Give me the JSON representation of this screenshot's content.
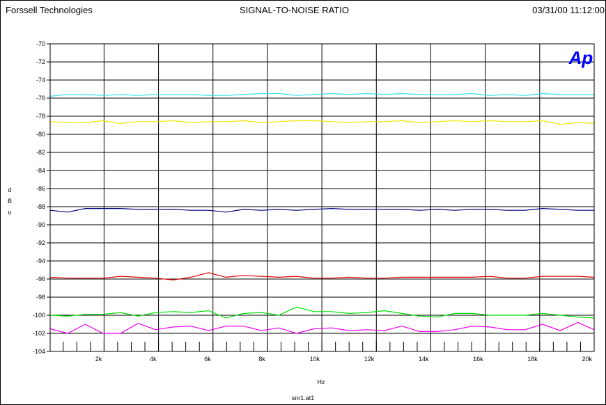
{
  "header": {
    "company": "Forssell Technologies",
    "title": "SIGNAL-TO-NOISE RATIO",
    "timestamp": "03/31/00 11:12:00"
  },
  "footer": {
    "filename": "snr1.at1"
  },
  "logo": {
    "text": "Ap",
    "color": "#0000ff"
  },
  "chart_data": {
    "type": "line",
    "title": "SIGNAL-TO-NOISE RATIO",
    "xlabel": "Hz",
    "ylabel": "dBu",
    "xlim": [
      20,
      20000
    ],
    "ylim": [
      -104,
      -70
    ],
    "x_ticks": [
      2000,
      4000,
      6000,
      8000,
      10000,
      12000,
      14000,
      16000,
      18000,
      20000
    ],
    "x_tick_labels": [
      "2k",
      "4k",
      "6k",
      "8k",
      "10k",
      "12k",
      "14k",
      "16k",
      "18k",
      "20k"
    ],
    "y_ticks": [
      -70,
      -72,
      -74,
      -76,
      -78,
      -80,
      -82,
      -84,
      -86,
      -88,
      -90,
      -92,
      -94,
      -96,
      -98,
      -100,
      -102,
      -104
    ],
    "grid": true,
    "x": [
      20,
      666,
      1312,
      1958,
      2604,
      3250,
      3896,
      4542,
      5188,
      5834,
      6480,
      7126,
      7772,
      8418,
      9064,
      9710,
      10356,
      11002,
      11648,
      12294,
      12940,
      13586,
      14232,
      14878,
      15524,
      16170,
      16816,
      17462,
      18108,
      18754,
      19400,
      20000
    ],
    "series": [
      {
        "color": "#33e0e8",
        "values": [
          -75.8,
          -75.6,
          -75.6,
          -75.7,
          -75.6,
          -75.7,
          -75.6,
          -75.6,
          -75.6,
          -75.7,
          -75.7,
          -75.6,
          -75.5,
          -75.5,
          -75.7,
          -75.6,
          -75.5,
          -75.6,
          -75.5,
          -75.6,
          -75.5,
          -75.6,
          -75.6,
          -75.6,
          -75.5,
          -75.7,
          -75.6,
          -75.7,
          -75.5,
          -75.6,
          -75.6,
          -75.6
        ]
      },
      {
        "color": "#f2e600",
        "values": [
          -78.6,
          -78.7,
          -78.7,
          -78.5,
          -78.8,
          -78.6,
          -78.6,
          -78.5,
          -78.7,
          -78.6,
          -78.6,
          -78.5,
          -78.7,
          -78.6,
          -78.5,
          -78.5,
          -78.6,
          -78.7,
          -78.6,
          -78.6,
          -78.5,
          -78.7,
          -78.6,
          -78.5,
          -78.6,
          -78.5,
          -78.6,
          -78.6,
          -78.5,
          -78.9,
          -78.7,
          -78.8
        ]
      },
      {
        "color": "#000080",
        "values": [
          -88.4,
          -88.6,
          -88.2,
          -88.2,
          -88.2,
          -88.3,
          -88.3,
          -88.3,
          -88.4,
          -88.4,
          -88.6,
          -88.3,
          -88.4,
          -88.3,
          -88.4,
          -88.3,
          -88.2,
          -88.3,
          -88.3,
          -88.3,
          -88.3,
          -88.4,
          -88.3,
          -88.4,
          -88.3,
          -88.3,
          -88.4,
          -88.4,
          -88.2,
          -88.3,
          -88.4,
          -88.4
        ]
      },
      {
        "color": "#e00000",
        "values": [
          -95.8,
          -95.9,
          -95.9,
          -95.9,
          -95.7,
          -95.8,
          -95.9,
          -96.1,
          -95.8,
          -95.3,
          -95.8,
          -95.6,
          -95.7,
          -95.8,
          -95.7,
          -95.9,
          -95.9,
          -95.8,
          -95.9,
          -95.9,
          -95.8,
          -95.8,
          -95.8,
          -95.8,
          -95.8,
          -95.7,
          -95.9,
          -95.9,
          -95.7,
          -95.7,
          -95.7,
          -95.8
        ]
      },
      {
        "color": "#00e000",
        "values": [
          -100.0,
          -100.1,
          -99.9,
          -99.9,
          -99.7,
          -100.1,
          -99.7,
          -99.6,
          -99.7,
          -99.5,
          -100.3,
          -99.8,
          -99.7,
          -100.0,
          -99.1,
          -99.6,
          -99.6,
          -99.8,
          -99.7,
          -99.5,
          -99.8,
          -100.1,
          -100.2,
          -99.8,
          -99.8,
          -100.0,
          -100.0,
          -100.0,
          -99.8,
          -100.0,
          -100.2,
          -100.3
        ]
      },
      {
        "color": "#ee00ee",
        "values": [
          -101.5,
          -102.0,
          -101.0,
          -102.0,
          -102.0,
          -100.9,
          -101.6,
          -101.3,
          -101.2,
          -101.7,
          -101.2,
          -101.2,
          -101.7,
          -101.4,
          -102.0,
          -101.5,
          -101.4,
          -101.7,
          -101.6,
          -101.7,
          -101.2,
          -101.8,
          -101.8,
          -101.6,
          -101.2,
          -101.3,
          -101.6,
          -101.6,
          -101.0,
          -101.7,
          -100.8,
          -101.6
        ]
      }
    ]
  }
}
